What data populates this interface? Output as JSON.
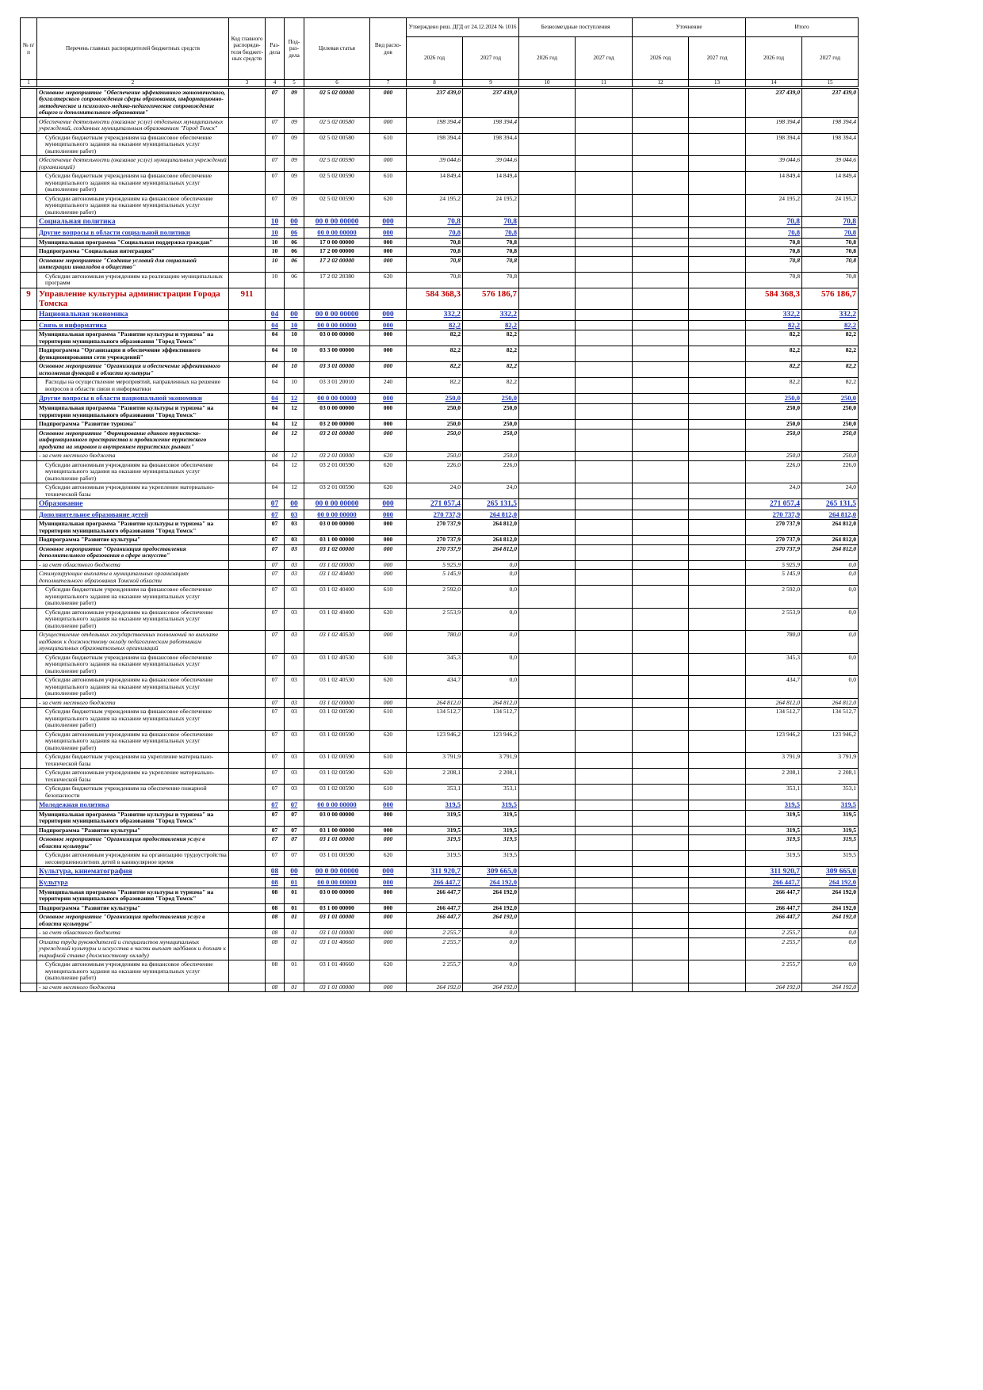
{
  "header": {
    "num": "№ п/п",
    "name": "Перечень главных распорядителей бюджетных средств",
    "code": "Код главного распоряди-теля бюджет-ных средств",
    "section": "Раз-дела",
    "subsection": "Под-раз-дела",
    "target": "Целевая статья",
    "expense": "Вид расхо-дов",
    "approved": "Утверждено реш. ДГД от 24.12.2024 № 1016",
    "grants": "Безвозмездные поступления",
    "adjust": "Уточнение",
    "total": "Итого",
    "years": [
      "2026 год",
      "2027 год"
    ],
    "col_numbers": [
      "1",
      "2",
      "3",
      "4",
      "5",
      "6",
      "7",
      "8",
      "9",
      "10",
      "11",
      "12",
      "13",
      "14",
      "15"
    ]
  },
  "rows": [
    {
      "s": "bi",
      "name": "Основное мероприятие \"Обеспечение эффективного экономического, бухгалтерского сопровождения сферы образования, информационно-методическое и психолого-медико-педагогическое сопровождение общего и дополнительного образования\"",
      "rz": "07",
      "pr": "09",
      "cs": "02 5 02 00000",
      "vr": "000",
      "a26": "237 439,0",
      "a27": "237 439,0",
      "t26": "237 439,0",
      "t27": "237 439,0"
    },
    {
      "s": "i",
      "name": "Обеспечение деятельности (оказание услуг) отдельных муниципальных учреждений, созданных муниципальным образованием \"Город Томск\"",
      "rz": "07",
      "pr": "09",
      "cs": "02 5 02 00580",
      "vr": "000",
      "a26": "198 394,4",
      "a27": "198 394,4",
      "t26": "198 394,4",
      "t27": "198 394,4"
    },
    {
      "s": "n",
      "name": "Субсидии бюджетным учреждениям на финансовое обеспечение муниципального задания на оказание муниципальных услуг (выполнение работ)",
      "rz": "07",
      "pr": "09",
      "cs": "02 5 02 00580",
      "vr": "610",
      "a26": "198 394,4",
      "a27": "198 394,4",
      "t26": "198 394,4",
      "t27": "198 394,4"
    },
    {
      "s": "i",
      "name": "Обеспечение деятельности (оказание услуг) муниципальных учреждений (организаций)",
      "rz": "07",
      "pr": "09",
      "cs": "02 5 02 00590",
      "vr": "000",
      "a26": "39 044,6",
      "a27": "39 044,6",
      "t26": "39 044,6",
      "t27": "39 044,6"
    },
    {
      "s": "n",
      "name": "Субсидии бюджетным учреждениям на финансовое обеспечение муниципального задания на оказание муниципальных услуг (выполнение работ)",
      "rz": "07",
      "pr": "09",
      "cs": "02 5 02 00590",
      "vr": "610",
      "a26": "14 849,4",
      "a27": "14 849,4",
      "t26": "14 849,4",
      "t27": "14 849,4"
    },
    {
      "s": "n",
      "name": "Субсидии автономным учреждениям на финансовое обеспечение муниципального задания на оказание муниципальных услуг (выполнение работ)",
      "rz": "07",
      "pr": "09",
      "cs": "02 5 02 00590",
      "vr": "620",
      "a26": "24 195,2",
      "a27": "24 195,2",
      "t26": "24 195,2",
      "t27": "24 195,2"
    },
    {
      "s": "sec",
      "name": "Социальная политика",
      "rz": "10",
      "pr": "00",
      "cs": "00 0 00 00000",
      "vr": "000",
      "a26": "70,8",
      "a27": "70,8",
      "t26": "70,8",
      "t27": "70,8"
    },
    {
      "s": "sub",
      "name": "Другие вопросы в области социальной политики",
      "rz": "10",
      "pr": "06",
      "cs": "00 0 00 00000",
      "vr": "000",
      "a26": "70,8",
      "a27": "70,8",
      "t26": "70,8",
      "t27": "70,8"
    },
    {
      "s": "b",
      "name": "Муниципальная программа \"Социальная поддержка граждан\"",
      "rz": "10",
      "pr": "06",
      "cs": "17 0 00 00000",
      "vr": "000",
      "a26": "70,8",
      "a27": "70,8",
      "t26": "70,8",
      "t27": "70,8"
    },
    {
      "s": "b",
      "name": "Подпрограмма \"Социальная интеграция\"",
      "rz": "10",
      "pr": "06",
      "cs": "17 2 00 00000",
      "vr": "000",
      "a26": "70,8",
      "a27": "70,8",
      "t26": "70,8",
      "t27": "70,8"
    },
    {
      "s": "bi",
      "name": "Основное мероприятие \"Создание условий для социальной интеграции инвалидов в общество\"",
      "rz": "10",
      "pr": "06",
      "cs": "17 2 02 00000",
      "vr": "000",
      "a26": "70,8",
      "a27": "70,8",
      "t26": "70,8",
      "t27": "70,8"
    },
    {
      "s": "n",
      "name": "Субсидии автономным учреждениям на реализацию муниципальных программ",
      "rz": "10",
      "pr": "06",
      "cs": "17 2 02 20380",
      "vr": "620",
      "a26": "70,8",
      "a27": "70,8",
      "t26": "70,8",
      "t27": "70,8"
    },
    {
      "s": "dept",
      "num": "9",
      "name": "Управление культуры администрации Города Томска",
      "code": "911",
      "a26": "584 368,3",
      "a27": "576 186,7",
      "t26": "584 368,3",
      "t27": "576 186,7"
    },
    {
      "s": "sec",
      "name": "Национальная экономика",
      "rz": "04",
      "pr": "00",
      "cs": "00 0 00 00000",
      "vr": "000",
      "a26": "332,2",
      "a27": "332,2",
      "t26": "332,2",
      "t27": "332,2"
    },
    {
      "s": "sub",
      "name": "Связь и информатика",
      "rz": "04",
      "pr": "10",
      "cs": "00 0 00 00000",
      "vr": "000",
      "a26": "82,2",
      "a27": "82,2",
      "t26": "82,2",
      "t27": "82,2"
    },
    {
      "s": "b",
      "name": "Муниципальная программа \"Развитие культуры и туризма\" на территории муниципального образования \"Город Томск\"",
      "rz": "04",
      "pr": "10",
      "cs": "03 0 00 00000",
      "vr": "000",
      "a26": "82,2",
      "a27": "82,2",
      "t26": "82,2",
      "t27": "82,2"
    },
    {
      "s": "b",
      "name": "Подпрограмма \"Организация и обеспечение эффективного функционирования сети учреждений\"",
      "rz": "04",
      "pr": "10",
      "cs": "03 3 00 00000",
      "vr": "000",
      "a26": "82,2",
      "a27": "82,2",
      "t26": "82,2",
      "t27": "82,2"
    },
    {
      "s": "bi",
      "name": "Основное мероприятие \"Организация и обеспечение эффективного исполнения функций в области культуры\"",
      "rz": "04",
      "pr": "10",
      "cs": "03 3 01 00000",
      "vr": "000",
      "a26": "82,2",
      "a27": "82,2",
      "t26": "82,2",
      "t27": "82,2"
    },
    {
      "s": "n",
      "name": "Расходы на осуществление мероприятий, направленных на решение вопросов в области связи и информатики",
      "rz": "04",
      "pr": "10",
      "cs": "03 3 01 20010",
      "vr": "240",
      "a26": "82,2",
      "a27": "82,2",
      "t26": "82,2",
      "t27": "82,2"
    },
    {
      "s": "sub",
      "name": "Другие вопросы в области национальной экономики",
      "rz": "04",
      "pr": "12",
      "cs": "00 0 00 00000",
      "vr": "000",
      "a26": "250,0",
      "a27": "250,0",
      "t26": "250,0",
      "t27": "250,0"
    },
    {
      "s": "b",
      "name": "Муниципальная программа \"Развитие культуры и туризма\" на территории муниципального образования \"Город Томск\"",
      "rz": "04",
      "pr": "12",
      "cs": "03 0 00 00000",
      "vr": "000",
      "a26": "250,0",
      "a27": "250,0",
      "t26": "250,0",
      "t27": "250,0"
    },
    {
      "s": "b",
      "name": "Подпрограмма \"Развитие туризма\"",
      "rz": "04",
      "pr": "12",
      "cs": "03 2 00 00000",
      "vr": "000",
      "a26": "250,0",
      "a27": "250,0",
      "t26": "250,0",
      "t27": "250,0"
    },
    {
      "s": "bi",
      "name": "Основное мероприятие \"Формирование единого туристско-информационного пространства и продвижение туристского продукта на мировом и внутреннем туристских рынках\"",
      "rz": "04",
      "pr": "12",
      "cs": "03 2 01 00000",
      "vr": "000",
      "a26": "250,0",
      "a27": "250,0",
      "t26": "250,0",
      "t27": "250,0"
    },
    {
      "s": "i",
      "name": "- за счет местного бюджета",
      "rz": "04",
      "pr": "12",
      "cs": "03 2 01 00000",
      "vr": "620",
      "a26": "250,0",
      "a27": "250,0",
      "t26": "250,0",
      "t27": "250,0"
    },
    {
      "s": "n",
      "name": "Субсидии автономным учреждениям на финансовое обеспечение муниципального задания на оказание муниципальных услуг (выполнение работ)",
      "rz": "04",
      "pr": "12",
      "cs": "03 2 01 00590",
      "vr": "620",
      "a26": "226,0",
      "a27": "226,0",
      "t26": "226,0",
      "t27": "226,0"
    },
    {
      "s": "n",
      "name": "Субсидии автономным учреждениям на укрепление материально-технической базы",
      "rz": "04",
      "pr": "12",
      "cs": "03 2 01 00590",
      "vr": "620",
      "a26": "24,0",
      "a27": "24,0",
      "t26": "24,0",
      "t27": "24,0"
    },
    {
      "s": "sec",
      "name": "Образование",
      "rz": "07",
      "pr": "00",
      "cs": "00 0 00 00000",
      "vr": "000",
      "a26": "271 057,4",
      "a27": "265 131,5",
      "t26": "271 057,4",
      "t27": "265 131,5"
    },
    {
      "s": "sub",
      "name": "Дополнительное образование детей",
      "rz": "07",
      "pr": "03",
      "cs": "00 0 00 00000",
      "vr": "000",
      "a26": "270 737,9",
      "a27": "264 812,0",
      "t26": "270 737,9",
      "t27": "264 812,0"
    },
    {
      "s": "b",
      "name": "Муниципальная программа \"Развитие культуры и туризма\" на территории муниципального образования \"Город Томск\"",
      "rz": "07",
      "pr": "03",
      "cs": "03 0 00 00000",
      "vr": "000",
      "a26": "270 737,9",
      "a27": "264 812,0",
      "t26": "270 737,9",
      "t27": "264 812,0"
    },
    {
      "s": "b",
      "name": "Подпрограмма \"Развитие культуры\"",
      "rz": "07",
      "pr": "03",
      "cs": "03 1 00 00000",
      "vr": "000",
      "a26": "270 737,9",
      "a27": "264 812,0",
      "t26": "270 737,9",
      "t27": "264 812,0"
    },
    {
      "s": "bi",
      "name": "Основное мероприятие \"Организация предоставления дополнительного образования в сфере искусств\"",
      "rz": "07",
      "pr": "03",
      "cs": "03 1 02 00000",
      "vr": "000",
      "a26": "270 737,9",
      "a27": "264 812,0",
      "t26": "270 737,9",
      "t27": "264 812,0"
    },
    {
      "s": "i",
      "name": "- за счет областного бюджета",
      "rz": "07",
      "pr": "03",
      "cs": "03 1 02 00000",
      "vr": "000",
      "a26": "5 925,9",
      "a27": "0,0",
      "t26": "5 925,9",
      "t27": "0,0"
    },
    {
      "s": "i",
      "name": "Стимулирующие выплаты в муниципальных организациях дополнительного образования Томской области",
      "rz": "07",
      "pr": "03",
      "cs": "03 1 02 40400",
      "vr": "000",
      "a26": "5 145,9",
      "a27": "0,0",
      "t26": "5 145,9",
      "t27": "0,0"
    },
    {
      "s": "n",
      "name": "Субсидии бюджетным учреждениям на финансовое обеспечение муниципального задания на оказание муниципальных услуг (выполнение работ)",
      "rz": "07",
      "pr": "03",
      "cs": "03 1 02 40400",
      "vr": "610",
      "a26": "2 592,0",
      "a27": "0,0",
      "t26": "2 592,0",
      "t27": "0,0"
    },
    {
      "s": "n",
      "name": "Субсидии автономным учреждениям на финансовое обеспечение муниципального задания на оказание муниципальных услуг (выполнение работ)",
      "rz": "07",
      "pr": "03",
      "cs": "03 1 02 40400",
      "vr": "620",
      "a26": "2 553,9",
      "a27": "0,0",
      "t26": "2 553,9",
      "t27": "0,0"
    },
    {
      "s": "i",
      "name": "Осуществление отдельных государственных полномочий по выплате надбавок к должностному окладу педагогическим работникам муниципальных образовательных организаций",
      "rz": "07",
      "pr": "03",
      "cs": "03 1 02 40530",
      "vr": "000",
      "a26": "780,0",
      "a27": "0,0",
      "t26": "780,0",
      "t27": "0,0"
    },
    {
      "s": "n",
      "name": "Субсидии бюджетным учреждениям на финансовое обеспечение муниципального задания на оказание муниципальных услуг (выполнение работ)",
      "rz": "07",
      "pr": "03",
      "cs": "03 1 02 40530",
      "vr": "610",
      "a26": "345,3",
      "a27": "0,0",
      "t26": "345,3",
      "t27": "0,0"
    },
    {
      "s": "n",
      "name": "Субсидии автономным учреждениям на финансовое обеспечение муниципального задания на оказание муниципальных услуг (выполнение работ)",
      "rz": "07",
      "pr": "03",
      "cs": "03 1 02 40530",
      "vr": "620",
      "a26": "434,7",
      "a27": "0,0",
      "t26": "434,7",
      "t27": "0,0"
    },
    {
      "s": "i",
      "name": "- за счет местного бюджета",
      "rz": "07",
      "pr": "03",
      "cs": "03 1 02 00000",
      "vr": "000",
      "a26": "264 812,0",
      "a27": "264 812,0",
      "t26": "264 812,0",
      "t27": "264 812,0"
    },
    {
      "s": "n",
      "name": "Субсидии бюджетным учреждениям на финансовое обеспечение муниципального задания на оказание муниципальных услуг (выполнение работ)",
      "rz": "07",
      "pr": "03",
      "cs": "03 1 02 00590",
      "vr": "610",
      "a26": "134 512,7",
      "a27": "134 512,7",
      "t26": "134 512,7",
      "t27": "134 512,7"
    },
    {
      "s": "n",
      "name": "Субсидии автономным учреждениям на финансовое обеспечение муниципального задания на оказание муниципальных услуг (выполнение работ)",
      "rz": "07",
      "pr": "03",
      "cs": "03 1 02 00590",
      "vr": "620",
      "a26": "123 946,2",
      "a27": "123 946,2",
      "t26": "123 946,2",
      "t27": "123 946,2"
    },
    {
      "s": "n",
      "name": "Субсидии бюджетным учреждениям на укрепление материально-технической базы",
      "rz": "07",
      "pr": "03",
      "cs": "03 1 02 00590",
      "vr": "610",
      "a26": "3 791,9",
      "a27": "3 791,9",
      "t26": "3 791,9",
      "t27": "3 791,9"
    },
    {
      "s": "n",
      "name": "Субсидии автономным учреждениям на укрепление материально-технической базы",
      "rz": "07",
      "pr": "03",
      "cs": "03 1 02 00590",
      "vr": "620",
      "a26": "2 208,1",
      "a27": "2 208,1",
      "t26": "2 208,1",
      "t27": "2 208,1"
    },
    {
      "s": "n",
      "name": "Субсидии бюджетным учреждениям на обеспечение пожарной безопасности",
      "rz": "07",
      "pr": "03",
      "cs": "03 1 02 00590",
      "vr": "610",
      "a26": "353,1",
      "a27": "353,1",
      "t26": "353,1",
      "t27": "353,1"
    },
    {
      "s": "sub",
      "name": "Молодежная политика",
      "rz": "07",
      "pr": "07",
      "cs": "00 0 00 00000",
      "vr": "000",
      "a26": "319,5",
      "a27": "319,5",
      "t26": "319,5",
      "t27": "319,5"
    },
    {
      "s": "b",
      "name": "Муниципальная программа \"Развитие культуры и туризма\" на территории муниципального образования \"Город Томск\"",
      "rz": "07",
      "pr": "07",
      "cs": "03 0 00 00000",
      "vr": "000",
      "a26": "319,5",
      "a27": "319,5",
      "t26": "319,5",
      "t27": "319,5"
    },
    {
      "s": "b",
      "name": "Подпрограмма \"Развитие культуры\"",
      "rz": "07",
      "pr": "07",
      "cs": "03 1 00 00000",
      "vr": "000",
      "a26": "319,5",
      "a27": "319,5",
      "t26": "319,5",
      "t27": "319,5"
    },
    {
      "s": "bi",
      "name": "Основное мероприятие \"Организация предоставления услуг в области культуры\"",
      "rz": "07",
      "pr": "07",
      "cs": "03 1 01 00000",
      "vr": "000",
      "a26": "319,5",
      "a27": "319,5",
      "t26": "319,5",
      "t27": "319,5"
    },
    {
      "s": "n",
      "name": "Субсидии автономным учреждениям на организацию трудоустройства несовершеннолетних детей в каникулярное время",
      "rz": "07",
      "pr": "07",
      "cs": "03 1 01 00590",
      "vr": "620",
      "a26": "319,5",
      "a27": "319,5",
      "t26": "319,5",
      "t27": "319,5"
    },
    {
      "s": "sec",
      "name": "Культура, кинематография",
      "rz": "08",
      "pr": "00",
      "cs": "00 0 00 00000",
      "vr": "000",
      "a26": "311 920,7",
      "a27": "309 665,0",
      "t26": "311 920,7",
      "t27": "309 665,0"
    },
    {
      "s": "sub",
      "name": "Культура",
      "rz": "08",
      "pr": "01",
      "cs": "00 0 00 00000",
      "vr": "000",
      "a26": "266 447,7",
      "a27": "264 192,0",
      "t26": "266 447,7",
      "t27": "264 192,0"
    },
    {
      "s": "b",
      "name": "Муниципальная программа \"Развитие культуры и туризма\" на территории муниципального образования \"Город Томск\"",
      "rz": "08",
      "pr": "01",
      "cs": "03 0 00 00000",
      "vr": "000",
      "a26": "266 447,7",
      "a27": "264 192,0",
      "t26": "266 447,7",
      "t27": "264 192,0"
    },
    {
      "s": "b",
      "name": "Подпрограмма \"Развитие культуры\"",
      "rz": "08",
      "pr": "01",
      "cs": "03 1 00 00000",
      "vr": "000",
      "a26": "266 447,7",
      "a27": "264 192,0",
      "t26": "266 447,7",
      "t27": "264 192,0"
    },
    {
      "s": "bi",
      "name": "Основное мероприятие \"Организация предоставления услуг в области культуры\"",
      "rz": "08",
      "pr": "01",
      "cs": "03 1 01 00000",
      "vr": "000",
      "a26": "266 447,7",
      "a27": "264 192,0",
      "t26": "266 447,7",
      "t27": "264 192,0"
    },
    {
      "s": "i",
      "name": "- за счет областного бюджета",
      "rz": "08",
      "pr": "01",
      "cs": "03 1 01 00000",
      "vr": "000",
      "a26": "2 255,7",
      "a27": "0,0",
      "t26": "2 255,7",
      "t27": "0,0"
    },
    {
      "s": "i",
      "name": "Оплата труда руководителей и специалистов муниципальных учреждений культуры и искусства в части выплат надбавок и доплат к тарифной ставке (должностному окладу)",
      "rz": "08",
      "pr": "01",
      "cs": "03 1 01 40660",
      "vr": "000",
      "a26": "2 255,7",
      "a27": "0,0",
      "t26": "2 255,7",
      "t27": "0,0"
    },
    {
      "s": "n",
      "name": "Субсидии автономным учреждениям на финансовое обеспечение муниципального задания на оказание муниципальных услуг (выполнение работ)",
      "rz": "08",
      "pr": "01",
      "cs": "03 1 01 40660",
      "vr": "620",
      "a26": "2 255,7",
      "a27": "0,0",
      "t26": "2 255,7",
      "t27": "0,0"
    },
    {
      "s": "i",
      "name": "- за счет местного бюджета",
      "rz": "08",
      "pr": "01",
      "cs": "03 1 01 00000",
      "vr": "000",
      "a26": "264 192,0",
      "a27": "264 192,0",
      "t26": "264 192,0",
      "t27": "264 192,0"
    }
  ]
}
